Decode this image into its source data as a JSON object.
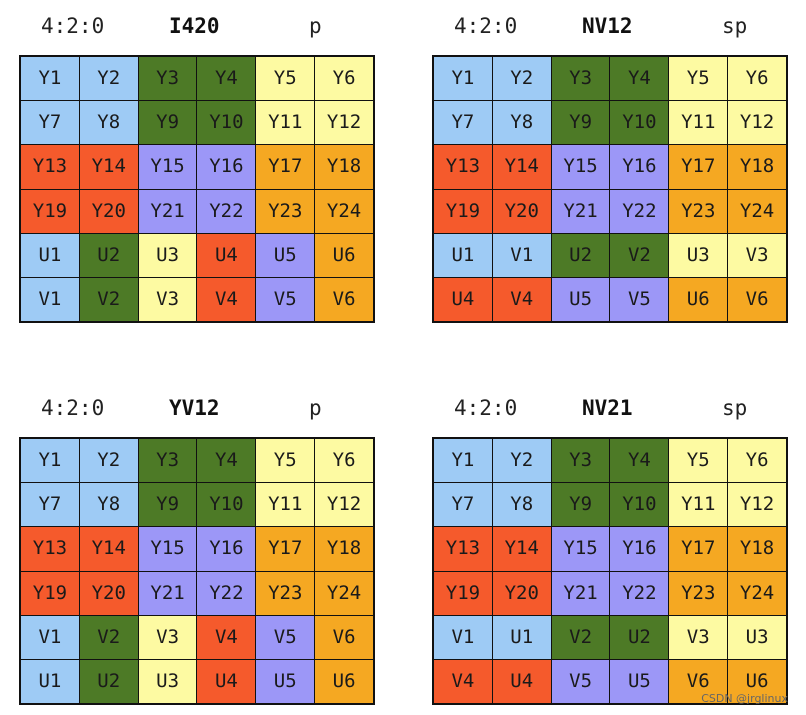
{
  "colors": {
    "blue": "#9ecbf5",
    "green": "#4d7a26",
    "yellow": "#fdfaa2",
    "red": "#f55a2c",
    "purple": "#9c97f7",
    "orange": "#f5a822",
    "border": "#111111"
  },
  "panels": [
    {
      "ratio": "4:2:0",
      "name": "I420",
      "type": "p",
      "rows": [
        [
          [
            "Y1",
            "blue"
          ],
          [
            "Y2",
            "blue"
          ],
          [
            "Y3",
            "green"
          ],
          [
            "Y4",
            "green"
          ],
          [
            "Y5",
            "yellow"
          ],
          [
            "Y6",
            "yellow"
          ]
        ],
        [
          [
            "Y7",
            "blue"
          ],
          [
            "Y8",
            "blue"
          ],
          [
            "Y9",
            "green"
          ],
          [
            "Y10",
            "green"
          ],
          [
            "Y11",
            "yellow"
          ],
          [
            "Y12",
            "yellow"
          ]
        ],
        [
          [
            "Y13",
            "red"
          ],
          [
            "Y14",
            "red"
          ],
          [
            "Y15",
            "purple"
          ],
          [
            "Y16",
            "purple"
          ],
          [
            "Y17",
            "orange"
          ],
          [
            "Y18",
            "orange"
          ]
        ],
        [
          [
            "Y19",
            "red"
          ],
          [
            "Y20",
            "red"
          ],
          [
            "Y21",
            "purple"
          ],
          [
            "Y22",
            "purple"
          ],
          [
            "Y23",
            "orange"
          ],
          [
            "Y24",
            "orange"
          ]
        ],
        [
          [
            "U1",
            "blue"
          ],
          [
            "U2",
            "green"
          ],
          [
            "U3",
            "yellow"
          ],
          [
            "U4",
            "red"
          ],
          [
            "U5",
            "purple"
          ],
          [
            "U6",
            "orange"
          ]
        ],
        [
          [
            "V1",
            "blue"
          ],
          [
            "V2",
            "green"
          ],
          [
            "V3",
            "yellow"
          ],
          [
            "V4",
            "red"
          ],
          [
            "V5",
            "purple"
          ],
          [
            "V6",
            "orange"
          ]
        ]
      ]
    },
    {
      "ratio": "4:2:0",
      "name": "NV12",
      "type": "sp",
      "rows": [
        [
          [
            "Y1",
            "blue"
          ],
          [
            "Y2",
            "blue"
          ],
          [
            "Y3",
            "green"
          ],
          [
            "Y4",
            "green"
          ],
          [
            "Y5",
            "yellow"
          ],
          [
            "Y6",
            "yellow"
          ]
        ],
        [
          [
            "Y7",
            "blue"
          ],
          [
            "Y8",
            "blue"
          ],
          [
            "Y9",
            "green"
          ],
          [
            "Y10",
            "green"
          ],
          [
            "Y11",
            "yellow"
          ],
          [
            "Y12",
            "yellow"
          ]
        ],
        [
          [
            "Y13",
            "red"
          ],
          [
            "Y14",
            "red"
          ],
          [
            "Y15",
            "purple"
          ],
          [
            "Y16",
            "purple"
          ],
          [
            "Y17",
            "orange"
          ],
          [
            "Y18",
            "orange"
          ]
        ],
        [
          [
            "Y19",
            "red"
          ],
          [
            "Y20",
            "red"
          ],
          [
            "Y21",
            "purple"
          ],
          [
            "Y22",
            "purple"
          ],
          [
            "Y23",
            "orange"
          ],
          [
            "Y24",
            "orange"
          ]
        ],
        [
          [
            "U1",
            "blue"
          ],
          [
            "V1",
            "blue"
          ],
          [
            "U2",
            "green"
          ],
          [
            "V2",
            "green"
          ],
          [
            "U3",
            "yellow"
          ],
          [
            "V3",
            "yellow"
          ]
        ],
        [
          [
            "U4",
            "red"
          ],
          [
            "V4",
            "red"
          ],
          [
            "U5",
            "purple"
          ],
          [
            "V5",
            "purple"
          ],
          [
            "U6",
            "orange"
          ],
          [
            "V6",
            "orange"
          ]
        ]
      ]
    },
    {
      "ratio": "4:2:0",
      "name": "YV12",
      "type": "p",
      "rows": [
        [
          [
            "Y1",
            "blue"
          ],
          [
            "Y2",
            "blue"
          ],
          [
            "Y3",
            "green"
          ],
          [
            "Y4",
            "green"
          ],
          [
            "Y5",
            "yellow"
          ],
          [
            "Y6",
            "yellow"
          ]
        ],
        [
          [
            "Y7",
            "blue"
          ],
          [
            "Y8",
            "blue"
          ],
          [
            "Y9",
            "green"
          ],
          [
            "Y10",
            "green"
          ],
          [
            "Y11",
            "yellow"
          ],
          [
            "Y12",
            "yellow"
          ]
        ],
        [
          [
            "Y13",
            "red"
          ],
          [
            "Y14",
            "red"
          ],
          [
            "Y15",
            "purple"
          ],
          [
            "Y16",
            "purple"
          ],
          [
            "Y17",
            "orange"
          ],
          [
            "Y18",
            "orange"
          ]
        ],
        [
          [
            "Y19",
            "red"
          ],
          [
            "Y20",
            "red"
          ],
          [
            "Y21",
            "purple"
          ],
          [
            "Y22",
            "purple"
          ],
          [
            "Y23",
            "orange"
          ],
          [
            "Y24",
            "orange"
          ]
        ],
        [
          [
            "V1",
            "blue"
          ],
          [
            "V2",
            "green"
          ],
          [
            "V3",
            "yellow"
          ],
          [
            "V4",
            "red"
          ],
          [
            "V5",
            "purple"
          ],
          [
            "V6",
            "orange"
          ]
        ],
        [
          [
            "U1",
            "blue"
          ],
          [
            "U2",
            "green"
          ],
          [
            "U3",
            "yellow"
          ],
          [
            "U4",
            "red"
          ],
          [
            "U5",
            "purple"
          ],
          [
            "U6",
            "orange"
          ]
        ]
      ]
    },
    {
      "ratio": "4:2:0",
      "name": "NV21",
      "type": "sp",
      "rows": [
        [
          [
            "Y1",
            "blue"
          ],
          [
            "Y2",
            "blue"
          ],
          [
            "Y3",
            "green"
          ],
          [
            "Y4",
            "green"
          ],
          [
            "Y5",
            "yellow"
          ],
          [
            "Y6",
            "yellow"
          ]
        ],
        [
          [
            "Y7",
            "blue"
          ],
          [
            "Y8",
            "blue"
          ],
          [
            "Y9",
            "green"
          ],
          [
            "Y10",
            "green"
          ],
          [
            "Y11",
            "yellow"
          ],
          [
            "Y12",
            "yellow"
          ]
        ],
        [
          [
            "Y13",
            "red"
          ],
          [
            "Y14",
            "red"
          ],
          [
            "Y15",
            "purple"
          ],
          [
            "Y16",
            "purple"
          ],
          [
            "Y17",
            "orange"
          ],
          [
            "Y18",
            "orange"
          ]
        ],
        [
          [
            "Y19",
            "red"
          ],
          [
            "Y20",
            "red"
          ],
          [
            "Y21",
            "purple"
          ],
          [
            "Y22",
            "purple"
          ],
          [
            "Y23",
            "orange"
          ],
          [
            "Y24",
            "orange"
          ]
        ],
        [
          [
            "V1",
            "blue"
          ],
          [
            "U1",
            "blue"
          ],
          [
            "V2",
            "green"
          ],
          [
            "U2",
            "green"
          ],
          [
            "V3",
            "yellow"
          ],
          [
            "U3",
            "yellow"
          ]
        ],
        [
          [
            "V4",
            "red"
          ],
          [
            "U4",
            "red"
          ],
          [
            "V5",
            "purple"
          ],
          [
            "U5",
            "purple"
          ],
          [
            "V6",
            "orange"
          ],
          [
            "U6",
            "orange"
          ]
        ]
      ]
    }
  ],
  "watermark": "CSDN @jrglinux"
}
